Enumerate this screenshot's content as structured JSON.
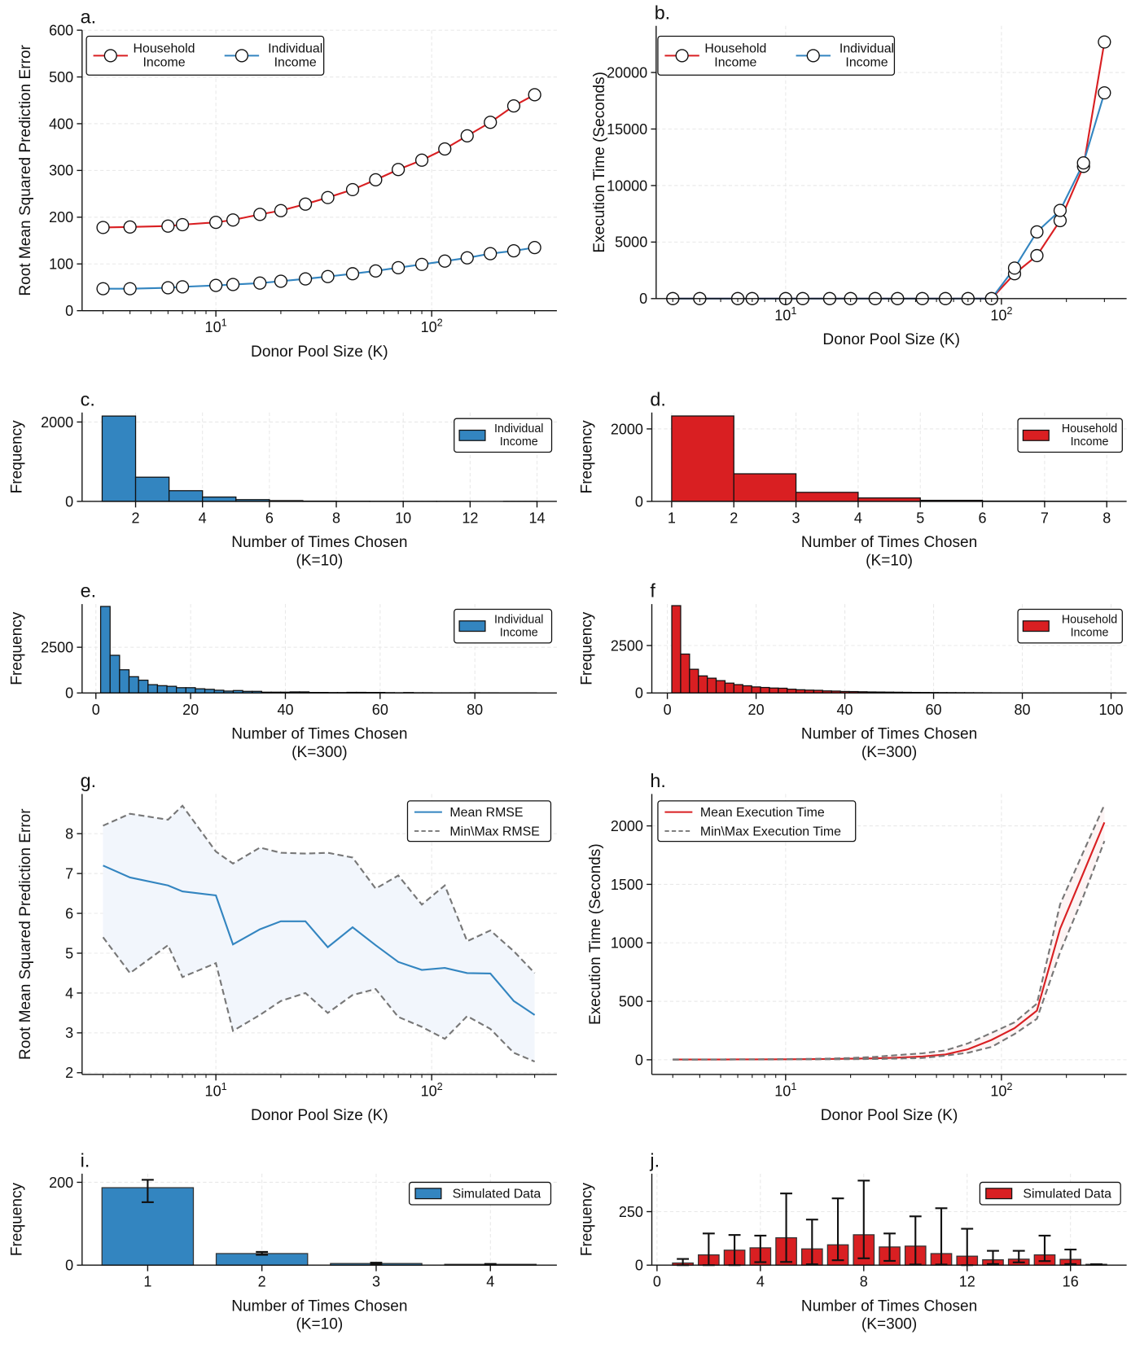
{
  "colors": {
    "red": "#d91f22",
    "blue": "#3385c0",
    "gray": "#777777",
    "blue_band": "#f2f6fc",
    "red_band": "#fdf4f4"
  },
  "chart_data": [
    {
      "panel": "a.",
      "type": "line",
      "xscale": "log",
      "xlabel": "Donor Pool Size (K)",
      "ylabel": "Root Mean Squared Prediction Error",
      "xticks": [
        {
          "v": 10,
          "base": "10",
          "exp": "1"
        },
        {
          "v": 100,
          "base": "10",
          "exp": "2"
        }
      ],
      "yticks": [
        0,
        100,
        200,
        300,
        400,
        500,
        600
      ],
      "grid": true,
      "legend": "top-left",
      "x": [
        3,
        4,
        6,
        7,
        10,
        12,
        16,
        20,
        26,
        33,
        43,
        55,
        70,
        90,
        115,
        146,
        187,
        240,
        300
      ],
      "series": [
        {
          "name": "Household Income",
          "color": "red",
          "marker": "open-circle",
          "y": [
            178,
            179,
            181,
            184,
            189,
            194,
            206,
            214,
            228,
            242,
            259,
            280,
            302,
            322,
            346,
            374,
            403,
            438,
            462
          ]
        },
        {
          "name": "Individual Income",
          "color": "blue",
          "marker": "open-circle",
          "y": [
            47,
            47,
            49,
            51,
            54,
            56,
            59,
            63,
            68,
            73,
            79,
            85,
            92,
            99,
            106,
            113,
            122,
            128,
            135
          ]
        }
      ]
    },
    {
      "panel": "b.",
      "type": "line",
      "xscale": "log",
      "xlabel": "Donor Pool Size (K)",
      "ylabel": "Execution Time (Seconds)",
      "xticks": [
        {
          "v": 10,
          "base": "10",
          "exp": "1"
        },
        {
          "v": 100,
          "base": "10",
          "exp": "2"
        }
      ],
      "yticks": [
        0,
        5000,
        10000,
        15000,
        20000
      ],
      "grid": true,
      "legend": "top-left",
      "x": [
        3,
        4,
        6,
        7,
        10,
        12,
        16,
        20,
        26,
        33,
        43,
        55,
        70,
        90,
        115,
        146,
        187,
        240,
        300
      ],
      "series": [
        {
          "name": "Household Income",
          "color": "red",
          "marker": "open-circle",
          "y": [
            0,
            0,
            0,
            0,
            0,
            0,
            0,
            0,
            0,
            0,
            0,
            0,
            0,
            0,
            2200,
            3800,
            6900,
            11700,
            22700
          ]
        },
        {
          "name": "Individual Income",
          "color": "blue",
          "marker": "open-circle",
          "y": [
            0,
            0,
            0,
            0,
            0,
            0,
            0,
            0,
            0,
            0,
            0,
            0,
            0,
            0,
            2700,
            5900,
            7800,
            12000,
            18200
          ]
        }
      ]
    },
    {
      "panel": "c.",
      "type": "bar",
      "xlabel": "Number of Times Chosen\n(K=10)",
      "ylabel": "Frequency",
      "xticks": [
        2,
        4,
        6,
        8,
        10,
        12,
        14
      ],
      "yticks": [
        0,
        2000
      ],
      "grid": true,
      "legend": "top-right",
      "series": [
        {
          "name": "Individual Income",
          "color": "blue",
          "bin_start": 1,
          "bin_width": 1,
          "values": [
            2150,
            610,
            270,
            110,
            45,
            20,
            8,
            4,
            2,
            1,
            1,
            0,
            1
          ]
        }
      ]
    },
    {
      "panel": "d.",
      "type": "bar",
      "xlabel": "Number of Times Chosen\n(K=10)",
      "ylabel": "Frequency",
      "xticks": [
        1,
        2,
        3,
        4,
        5,
        6,
        7,
        8
      ],
      "yticks": [
        0,
        2000
      ],
      "grid": true,
      "legend": "top-right",
      "series": [
        {
          "name": "Household Income",
          "color": "red",
          "bin_start": 1,
          "bin_width": 1,
          "values": [
            2357,
            762,
            250,
            95,
            30,
            10,
            4
          ]
        }
      ]
    },
    {
      "panel": "e.",
      "type": "bar",
      "xlabel": "Number of Times Chosen\n(K=300)",
      "ylabel": "Frequency",
      "xticks": [
        0,
        20,
        40,
        60,
        80
      ],
      "yticks": [
        0,
        2500
      ],
      "grid": true,
      "legend": "top-right",
      "series": [
        {
          "name": "Individual Income",
          "color": "blue",
          "bin_start": 1,
          "bin_width": 2,
          "values": [
            4730,
            2060,
            1270,
            890,
            700,
            455,
            400,
            365,
            290,
            290,
            230,
            200,
            150,
            105,
            135,
            90,
            90,
            45,
            45,
            45,
            60,
            60,
            30,
            30,
            25,
            25,
            35,
            35,
            30,
            30,
            20,
            15,
            25,
            15,
            15,
            10,
            10,
            10,
            10,
            15,
            10,
            10,
            8,
            8,
            5,
            5
          ]
        }
      ]
    },
    {
      "panel": "f",
      "type": "bar",
      "xlabel": "Number of Times Chosen\n(K=300)",
      "ylabel": "Frequency",
      "xticks": [
        0,
        20,
        40,
        60,
        80,
        100
      ],
      "yticks": [
        0,
        2500
      ],
      "grid": true,
      "legend": "top-right",
      "series": [
        {
          "name": "Household Income",
          "color": "red",
          "bin_start": 1,
          "bin_width": 2,
          "values": [
            4600,
            2050,
            1250,
            900,
            780,
            650,
            520,
            440,
            380,
            320,
            290,
            260,
            250,
            200,
            170,
            150,
            140,
            110,
            100,
            80,
            75,
            65,
            55,
            50,
            45,
            40,
            35,
            30,
            28,
            25,
            22,
            20,
            18,
            16,
            14,
            12,
            10,
            9,
            8,
            7,
            6,
            6,
            5,
            5,
            4,
            4,
            3,
            3,
            2,
            2
          ]
        }
      ]
    },
    {
      "panel": "g.",
      "type": "line",
      "xscale": "log",
      "xlabel": "Donor Pool Size (K)",
      "ylabel": "Root Mean Squared Prediction Error",
      "xticks": [
        {
          "v": 10,
          "base": "10",
          "exp": "1"
        },
        {
          "v": 100,
          "base": "10",
          "exp": "2"
        }
      ],
      "yticks": [
        2,
        3,
        4,
        5,
        6,
        7,
        8
      ],
      "grid": true,
      "legend": "top-right",
      "band_color": "blue_band",
      "x": [
        3,
        4,
        6,
        7,
        10,
        12,
        16,
        20,
        26,
        33,
        43,
        55,
        70,
        90,
        115,
        146,
        187,
        240,
        300
      ],
      "series": [
        {
          "name": "Mean RMSE",
          "color": "blue",
          "style": "solid",
          "y": [
            7.2,
            6.9,
            6.7,
            6.55,
            6.45,
            5.22,
            5.6,
            5.8,
            5.8,
            5.15,
            5.65,
            5.2,
            4.78,
            4.58,
            4.63,
            4.5,
            4.49,
            3.8,
            3.45
          ]
        },
        {
          "name": "Min\\Max RMSE",
          "color": "gray",
          "style": "dashed",
          "y_min": [
            5.4,
            4.5,
            5.2,
            4.4,
            4.75,
            3.05,
            3.45,
            3.8,
            4.0,
            3.5,
            3.95,
            4.1,
            3.4,
            3.15,
            2.85,
            3.42,
            3.1,
            2.5,
            2.28
          ],
          "y_max": [
            8.2,
            8.5,
            8.35,
            8.7,
            7.55,
            7.25,
            7.65,
            7.52,
            7.5,
            7.52,
            7.4,
            6.62,
            6.95,
            6.22,
            6.7,
            5.3,
            5.57,
            5.05,
            4.5
          ]
        }
      ]
    },
    {
      "panel": "h.",
      "type": "line",
      "xscale": "log",
      "xlabel": "Donor Pool Size (K)",
      "ylabel": "Execution Time (Seconds)",
      "xticks": [
        {
          "v": 10,
          "base": "10",
          "exp": "1"
        },
        {
          "v": 100,
          "base": "10",
          "exp": "2"
        }
      ],
      "yticks": [
        0,
        500,
        1000,
        1500,
        2000
      ],
      "grid": true,
      "legend": "top-left",
      "band_color": "red_band",
      "x": [
        3,
        4,
        6,
        7,
        10,
        12,
        16,
        20,
        26,
        33,
        43,
        55,
        70,
        90,
        115,
        146,
        187,
        240,
        300
      ],
      "series": [
        {
          "name": "Mean Execution Time",
          "color": "red",
          "style": "solid",
          "y": [
            2,
            2,
            3,
            3,
            4,
            5,
            7,
            9,
            12,
            18,
            28,
            45,
            90,
            170,
            270,
            420,
            1120,
            1600,
            2030
          ]
        },
        {
          "name": "Min\\Max Execution Time",
          "color": "gray",
          "style": "dashed",
          "y_min": [
            1,
            1,
            2,
            2,
            3,
            3,
            4,
            5,
            7,
            10,
            15,
            35,
            60,
            110,
            220,
            350,
            920,
            1400,
            1870
          ],
          "y_max": [
            3,
            3,
            4,
            4,
            6,
            7,
            10,
            15,
            25,
            40,
            55,
            80,
            140,
            230,
            320,
            480,
            1330,
            1780,
            2180
          ]
        }
      ]
    },
    {
      "panel": "i.",
      "type": "bar",
      "xlabel": "Number of Times Chosen\n(K=10)",
      "ylabel": "Frequency",
      "xticks": [
        1,
        2,
        3,
        4
      ],
      "yticks": [
        0,
        200
      ],
      "grid": true,
      "legend": "top-right",
      "series": [
        {
          "name": "Simulated Data",
          "color": "blue",
          "x": [
            1,
            2,
            3,
            4
          ],
          "values": [
            187,
            28,
            4,
            2
          ],
          "err_low": [
            152,
            25,
            3,
            1
          ],
          "err_high": [
            206,
            32,
            6,
            3
          ]
        }
      ]
    },
    {
      "panel": "j.",
      "type": "bar",
      "xlabel": "Number of Times Chosen\n(K=300)",
      "ylabel": "Frequency",
      "xticks": [
        0,
        4,
        8,
        12,
        16
      ],
      "yticks": [
        0,
        250
      ],
      "grid": true,
      "legend": "top-right",
      "series": [
        {
          "name": "Simulated Data",
          "color": "red",
          "x": [
            1,
            2,
            3,
            4,
            5,
            6,
            7,
            8,
            9,
            10,
            11,
            12,
            13,
            14,
            15,
            16,
            17
          ],
          "values": [
            10,
            48,
            70,
            81,
            128,
            76,
            95,
            142,
            85,
            89,
            54,
            42,
            25,
            28,
            48,
            27,
            4
          ],
          "err_low": [
            0,
            0,
            0,
            14,
            15,
            4,
            23,
            32,
            20,
            3,
            3,
            0,
            5,
            13,
            19,
            5,
            4
          ],
          "err_high": [
            29,
            148,
            141,
            138,
            335,
            213,
            312,
            395,
            148,
            228,
            266,
            170,
            67,
            67,
            138,
            73,
            4
          ]
        }
      ]
    }
  ]
}
